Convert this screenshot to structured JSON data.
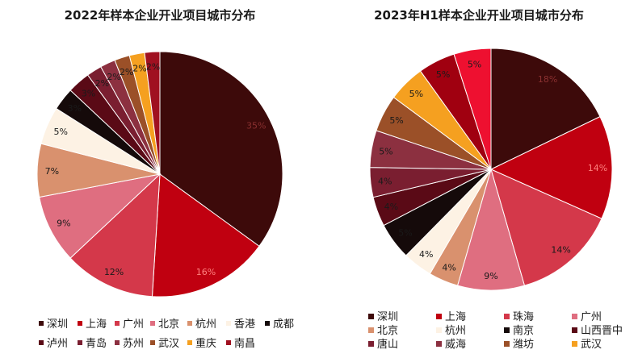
{
  "chart_data": [
    {
      "type": "pie",
      "title": "2022年样本企业开业项目城市分布",
      "categories": [
        "深圳",
        "上海",
        "广州",
        "北京",
        "杭州",
        "香港",
        "成都",
        "泸州",
        "青岛",
        "苏州",
        "武汉",
        "重庆",
        "南昌"
      ],
      "values": [
        35,
        16,
        12,
        9,
        7,
        5,
        3,
        3,
        2,
        2,
        2,
        2,
        2
      ],
      "labels": [
        "35%",
        "16%",
        "12%",
        "9%",
        "7%",
        "5%",
        "3%",
        "3%",
        "2%",
        "2%",
        "2%",
        "2%",
        "2%"
      ],
      "colors": [
        "#3d0a0a",
        "#c00010",
        "#d4384a",
        "#df6e80",
        "#d9916e",
        "#fdf2e4",
        "#150a0a",
        "#5a0a16",
        "#7a1e30",
        "#8c3040",
        "#9b5028",
        "#f5a020",
        "#a01020"
      ],
      "label_colors": [
        "#8a3030",
        "#ff8080",
        "#1a1a1a",
        "#1a1a1a",
        "#1a1a1a",
        "#1a1a1a",
        "#1a1a1a",
        "#1a1a1a",
        "#1a1a1a",
        "#1a1a1a",
        "#1a1a1a",
        "#1a1a1a",
        "#1a1a1a"
      ],
      "legend_position": "bottom",
      "legend_columns": 7
    },
    {
      "type": "pie",
      "title": "2023年H1样本企业开业项目城市分布",
      "categories": [
        "深圳",
        "上海",
        "珠海",
        "广州",
        "北京",
        "杭州",
        "南京",
        "山西晋中",
        "唐山",
        "威海",
        "潍坊",
        "武汉"
      ],
      "values": [
        18,
        14,
        14,
        9,
        4,
        4,
        5,
        4,
        4,
        5,
        5,
        5
      ],
      "labels": [
        "18%",
        "14%",
        "14%",
        "9%",
        "4%",
        "4%",
        "5%",
        "4%",
        "4%",
        "5%",
        "5%",
        "5%"
      ],
      "extra_slices": [
        {
          "value": 5,
          "label": "5%",
          "color": "#a00010"
        },
        {
          "value": 5,
          "label": "5%",
          "color": "#ee1030"
        }
      ],
      "colors": [
        "#3d0a0a",
        "#c00010",
        "#d4384a",
        "#df6e80",
        "#d9916e",
        "#fdf2e4",
        "#150a0a",
        "#5a0a16",
        "#7a1e30",
        "#8c3040",
        "#9b5028",
        "#f5a020"
      ],
      "label_colors": [
        "#8a3030",
        "#ff8080",
        "#1a1a1a",
        "#1a1a1a",
        "#1a1a1a",
        "#1a1a1a",
        "#1a1a1a",
        "#1a1a1a",
        "#1a1a1a",
        "#1a1a1a",
        "#1a1a1a",
        "#1a1a1a"
      ],
      "legend_position": "bottom",
      "legend_columns": 4
    }
  ]
}
